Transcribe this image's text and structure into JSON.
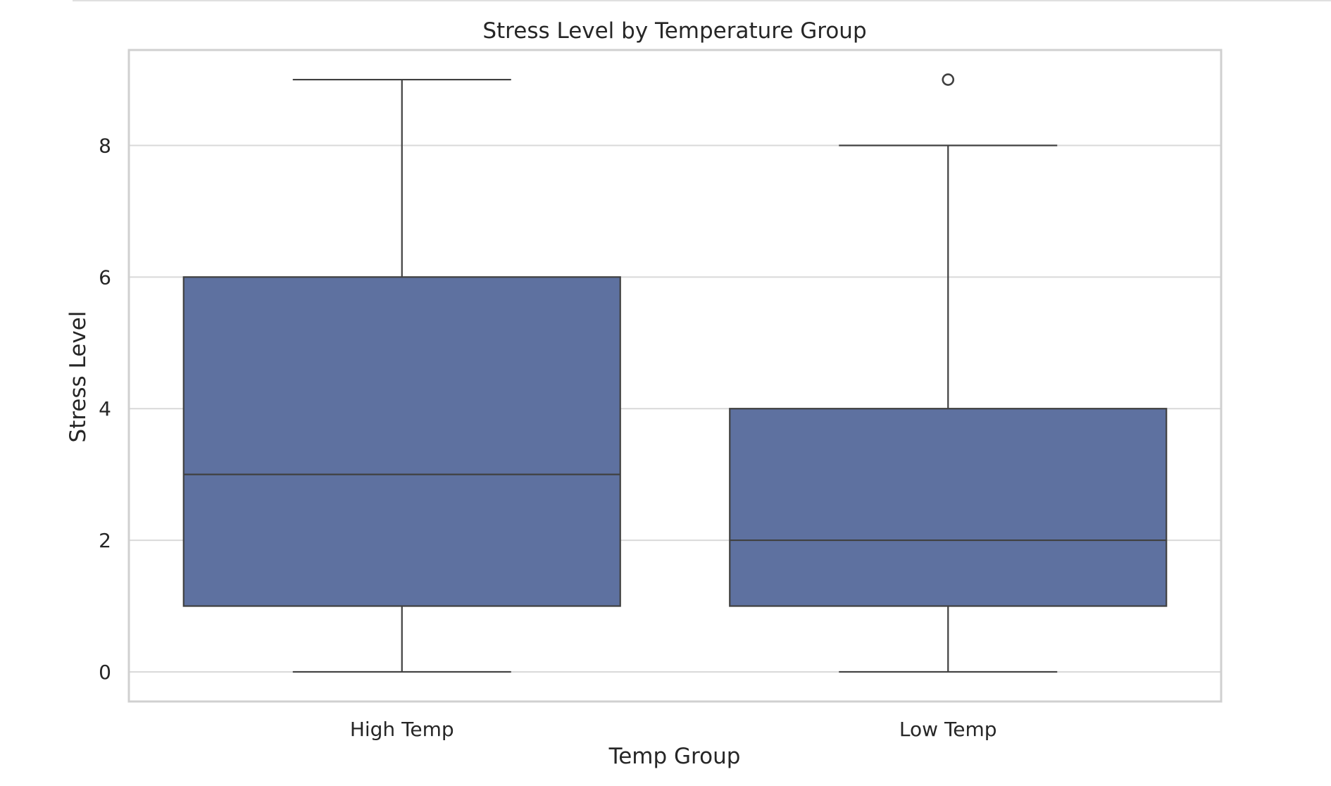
{
  "chart_data": {
    "type": "box",
    "title": "Stress Level by Temperature Group",
    "xlabel": "Temp Group",
    "ylabel": "Stress Level",
    "categories": [
      "High Temp",
      "Low Temp"
    ],
    "ylim": [
      -0.45,
      9.45
    ],
    "yticks": [
      0,
      2,
      4,
      6,
      8
    ],
    "grid": true,
    "legend": "none",
    "colors": {
      "box_fill": "#5e71a0",
      "line": "#404040",
      "grid": "#d9d9d9",
      "frame": "#d0d0d0",
      "background": "#ffffff"
    },
    "boxes": [
      {
        "category": "High Temp",
        "whisker_low": 0,
        "q1": 1,
        "median": 3,
        "q3": 6,
        "whisker_high": 9,
        "outliers": []
      },
      {
        "category": "Low Temp",
        "whisker_low": 0,
        "q1": 1,
        "median": 2,
        "q3": 4,
        "whisker_high": 8,
        "outliers": [
          9
        ]
      }
    ]
  }
}
